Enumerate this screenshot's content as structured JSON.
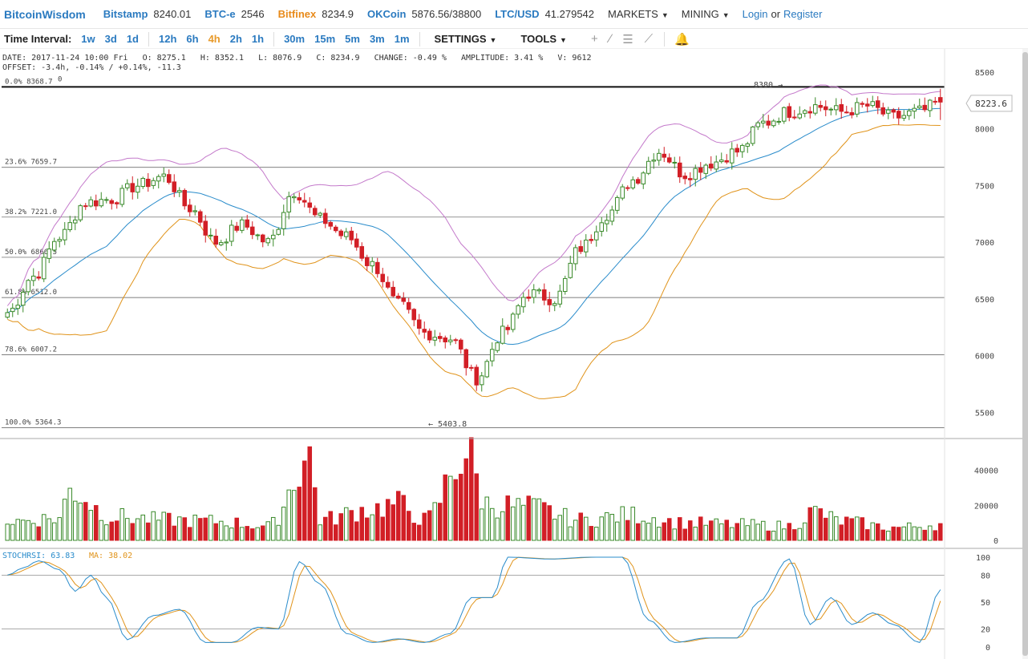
{
  "topbar": {
    "logo": "BitcoinWisdom",
    "exchanges": [
      {
        "name": "Bitstamp",
        "price": "8240.01",
        "color": "#2a7ac0"
      },
      {
        "name": "BTC-e",
        "price": "2546",
        "color": "#2a7ac0"
      },
      {
        "name": "Bitfinex",
        "price": "8234.9",
        "color": "#e88a1a"
      },
      {
        "name": "OKCoin",
        "price": "5876.56/38800",
        "color": "#2a7ac0"
      },
      {
        "name": "LTC/USD",
        "price": "41.279542",
        "color": "#2a7ac0"
      }
    ],
    "markets_label": "MARKETS",
    "mining_label": "MINING",
    "login_label": "Login",
    "or_label": "or",
    "register_label": "Register",
    "caret_icon": "caret-down-icon"
  },
  "toolbar": {
    "time_interval_label": "Time Interval:",
    "interval_groups": [
      [
        "1w",
        "3d",
        "1d"
      ],
      [
        "12h",
        "6h",
        "4h",
        "2h",
        "1h"
      ],
      [
        "30m",
        "15m",
        "5m",
        "3m",
        "1m"
      ]
    ],
    "active_interval": "4h",
    "settings_label": "SETTINGS",
    "tools_label": "TOOLS",
    "tool_icons": [
      "crosshair-icon",
      "line-tool-icon",
      "horizontal-lines-icon",
      "fib-tool-icon",
      "bell-icon"
    ]
  },
  "info": {
    "line1": "DATE: 2017-11-24 10:00 Fri   O: 8275.1   H: 8352.1   L: 8076.9   C: 8234.9   CHANGE: -0.49 %   AMPLITUDE: 3.41 %   V: 9612",
    "line2": "OFFSET: -3.4h, -0.14% / +0.14%, -11.3"
  },
  "price_labels": {
    "current": "8223.6",
    "high_marker": "8380 →",
    "low_marker": "← 5403.8",
    "top_zero": "0"
  },
  "colors": {
    "up": "#3a8a2a",
    "down": "#d21f26",
    "ma_fast": "#2a8ccb",
    "band_upper": "#c47acb",
    "band_lower": "#e0931a",
    "rsi_k": "#2a8ccb",
    "rsi_d": "#e0931a",
    "grid": "#c8c8c8"
  },
  "rsi_label": {
    "k": "STOCHRSI: 63.83",
    "d": "MA: 38.02"
  },
  "chart_data": {
    "type": "candlestick",
    "price_axis": {
      "ticks": [
        5500,
        6000,
        6500,
        7000,
        7500,
        8000,
        8500
      ],
      "range": [
        5290,
        8520
      ]
    },
    "volume_axis": {
      "ticks": [
        0,
        20000,
        40000
      ],
      "range": [
        0,
        55000
      ]
    },
    "rsi_axis": {
      "ticks": [
        0,
        20,
        50,
        80,
        100
      ],
      "range": [
        0,
        100
      ]
    },
    "fib_levels": [
      {
        "label": "0.0% 8368.7",
        "value": 8368.7
      },
      {
        "label": "23.6% 7659.7",
        "value": 7659.7
      },
      {
        "label": "38.2% 7221.0",
        "value": 7221.0
      },
      {
        "label": "50.0% 6866.5",
        "value": 6866.5
      },
      {
        "label": "61.8% 6512.0",
        "value": 6512.0
      },
      {
        "label": "78.6% 6007.2",
        "value": 6007.2
      },
      {
        "label": "100.0% 5364.3",
        "value": 5364.3
      }
    ],
    "current_price": 8223.6,
    "high": 8380,
    "low": 5403.8,
    "close_anchors": [
      [
        0,
        6380
      ],
      [
        5,
        6700
      ],
      [
        10,
        7050
      ],
      [
        15,
        7350
      ],
      [
        20,
        7380
      ],
      [
        25,
        7500
      ],
      [
        30,
        7580
      ],
      [
        35,
        7300
      ],
      [
        40,
        7000
      ],
      [
        45,
        7150
      ],
      [
        50,
        7000
      ],
      [
        55,
        7450
      ],
      [
        60,
        7200
      ],
      [
        65,
        7050
      ],
      [
        70,
        6800
      ],
      [
        75,
        6450
      ],
      [
        80,
        6200
      ],
      [
        85,
        6150
      ],
      [
        90,
        5800
      ],
      [
        95,
        6200
      ],
      [
        100,
        6550
      ],
      [
        105,
        6500
      ],
      [
        110,
        6950
      ],
      [
        115,
        7250
      ],
      [
        120,
        7550
      ],
      [
        125,
        7800
      ],
      [
        130,
        7600
      ],
      [
        135,
        7700
      ],
      [
        140,
        7800
      ],
      [
        145,
        8050
      ],
      [
        150,
        8150
      ],
      [
        155,
        8200
      ],
      [
        160,
        8150
      ],
      [
        165,
        8200
      ],
      [
        170,
        8100
      ],
      [
        175,
        8150
      ],
      [
        179,
        8234.9
      ]
    ],
    "volume_anchors": [
      [
        0,
        12000
      ],
      [
        10,
        14000
      ],
      [
        12,
        32000
      ],
      [
        20,
        15000
      ],
      [
        30,
        13000
      ],
      [
        40,
        12000
      ],
      [
        50,
        9000
      ],
      [
        58,
        53000
      ],
      [
        60,
        13000
      ],
      [
        70,
        20000
      ],
      [
        75,
        23000
      ],
      [
        80,
        13000
      ],
      [
        88,
        55000
      ],
      [
        92,
        23000
      ],
      [
        100,
        21000
      ],
      [
        110,
        13000
      ],
      [
        120,
        16000
      ],
      [
        130,
        11000
      ],
      [
        140,
        10000
      ],
      [
        150,
        9000
      ],
      [
        155,
        18000
      ],
      [
        160,
        12000
      ],
      [
        170,
        8000
      ],
      [
        179,
        10000
      ]
    ],
    "stochrsi_anchors": [
      [
        0,
        80
      ],
      [
        3,
        88
      ],
      [
        6,
        96
      ],
      [
        10,
        86
      ],
      [
        13,
        62
      ],
      [
        16,
        80
      ],
      [
        19,
        55
      ],
      [
        23,
        8
      ],
      [
        28,
        35
      ],
      [
        33,
        42
      ],
      [
        38,
        5
      ],
      [
        43,
        5
      ],
      [
        48,
        22
      ],
      [
        52,
        20
      ],
      [
        56,
        95
      ],
      [
        60,
        70
      ],
      [
        65,
        15
      ],
      [
        70,
        5
      ],
      [
        75,
        9
      ],
      [
        80,
        5
      ],
      [
        85,
        15
      ],
      [
        89,
        55
      ],
      [
        93,
        55
      ],
      [
        96,
        100
      ],
      [
        104,
        98
      ],
      [
        112,
        100
      ],
      [
        118,
        100
      ],
      [
        123,
        30
      ],
      [
        128,
        5
      ],
      [
        134,
        10
      ],
      [
        140,
        10
      ],
      [
        144,
        50
      ],
      [
        150,
        98
      ],
      [
        154,
        25
      ],
      [
        158,
        55
      ],
      [
        162,
        25
      ],
      [
        166,
        38
      ],
      [
        170,
        25
      ],
      [
        175,
        5
      ],
      [
        179,
        63.83
      ]
    ],
    "candles_count": 180
  }
}
